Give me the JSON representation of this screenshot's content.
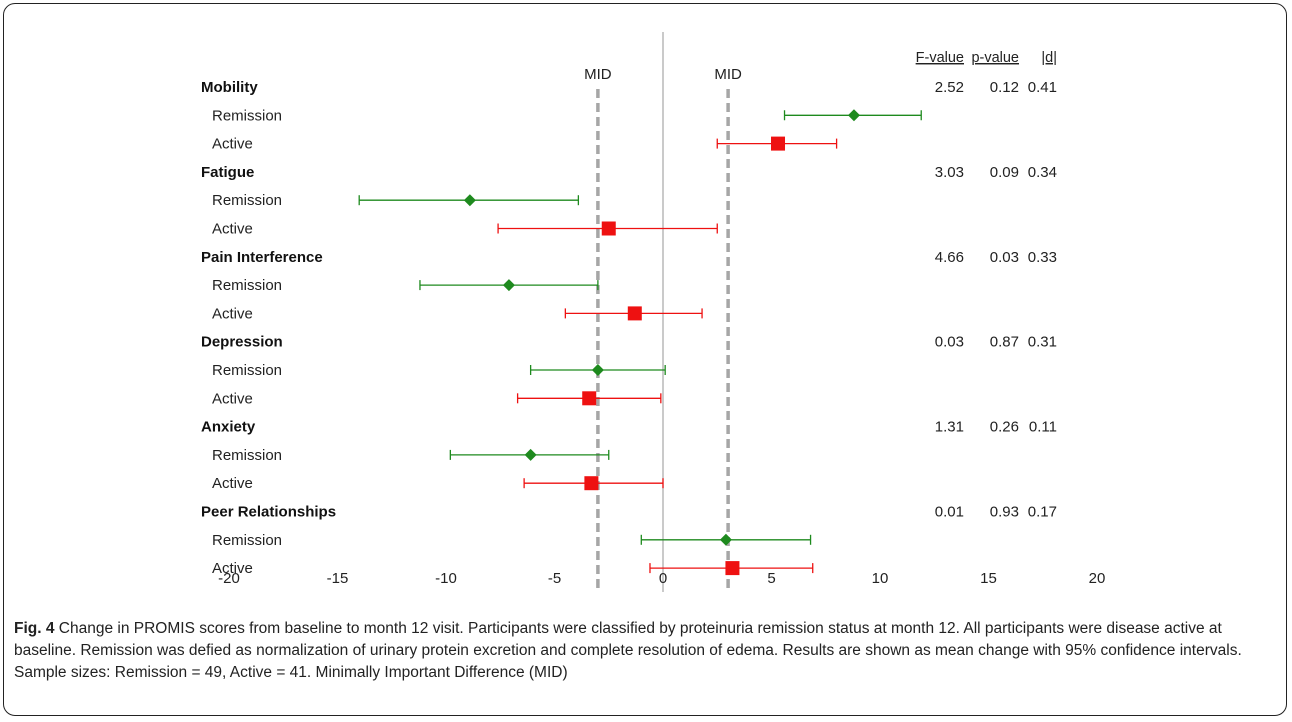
{
  "chart_data": {
    "type": "scatter",
    "subtype": "forest-plot",
    "xlim": [
      -20,
      20
    ],
    "xticks": [
      -20,
      -15,
      -10,
      -5,
      0,
      5,
      10,
      15,
      20
    ],
    "reference_lines": [
      {
        "label": "MID",
        "x": -3,
        "style": "dashed",
        "color": "#a6a6a6"
      },
      {
        "label": "MID",
        "x": 3,
        "style": "dashed",
        "color": "#a6a6a6"
      },
      {
        "label": "",
        "x": 0,
        "style": "solid",
        "color": "#a6a6a6"
      }
    ],
    "stat_headers": [
      "F-value",
      "p-value",
      "|d|"
    ],
    "series": [
      {
        "name": "Remission",
        "color": "#1e8a1e",
        "marker": "diamond"
      },
      {
        "name": "Active",
        "color": "#ee1111",
        "marker": "square"
      }
    ],
    "groups": [
      {
        "name": "Mobility",
        "stats": [
          "2.52",
          "0.12",
          "0.41"
        ],
        "rows": [
          {
            "label": "Remission",
            "estimate": 8.8,
            "lower": 5.6,
            "upper": 11.9
          },
          {
            "label": "Active",
            "estimate": 5.3,
            "lower": 2.5,
            "upper": 8.0
          }
        ]
      },
      {
        "name": "Fatigue",
        "stats": [
          "3.03",
          "0.09",
          "0.34"
        ],
        "rows": [
          {
            "label": "Remission",
            "estimate": -8.9,
            "lower": -14.0,
            "upper": -3.9
          },
          {
            "label": "Active",
            "estimate": -2.5,
            "lower": -7.6,
            "upper": 2.5
          }
        ]
      },
      {
        "name": "Pain Interference",
        "stats": [
          "4.66",
          "0.03",
          "0.33"
        ],
        "rows": [
          {
            "label": "Remission",
            "estimate": -7.1,
            "lower": -11.2,
            "upper": -3.0
          },
          {
            "label": "Active",
            "estimate": -1.3,
            "lower": -4.5,
            "upper": 1.8
          }
        ]
      },
      {
        "name": "Depression",
        "stats": [
          "0.03",
          "0.87",
          "0.31"
        ],
        "rows": [
          {
            "label": "Remission",
            "estimate": -3.0,
            "lower": -6.1,
            "upper": 0.1
          },
          {
            "label": "Active",
            "estimate": -3.4,
            "lower": -6.7,
            "upper": -0.1
          }
        ]
      },
      {
        "name": "Anxiety",
        "stats": [
          "1.31",
          "0.26",
          "0.11"
        ],
        "rows": [
          {
            "label": "Remission",
            "estimate": -6.1,
            "lower": -9.8,
            "upper": -2.5
          },
          {
            "label": "Active",
            "estimate": -3.3,
            "lower": -6.4,
            "upper": 0.0
          }
        ]
      },
      {
        "name": "Peer Relationships",
        "stats": [
          "0.01",
          "0.93",
          "0.17"
        ],
        "rows": [
          {
            "label": "Remission",
            "estimate": 2.9,
            "lower": -1.0,
            "upper": 6.8
          },
          {
            "label": "Active",
            "estimate": 3.2,
            "lower": -0.6,
            "upper": 6.9
          }
        ]
      }
    ]
  },
  "caption": {
    "label": "Fig. 4",
    "text": "Change in PROMIS scores from baseline to month 12 visit. Participants were classified by proteinuria remission status at month 12. All participants were disease active at baseline. Remission was defied as normalization of urinary protein excretion and complete resolution of edema. Results are shown as mean change with 95% confidence intervals. Sample sizes: Remission = 49, Active = 41. Minimally Important Difference (MID)"
  }
}
